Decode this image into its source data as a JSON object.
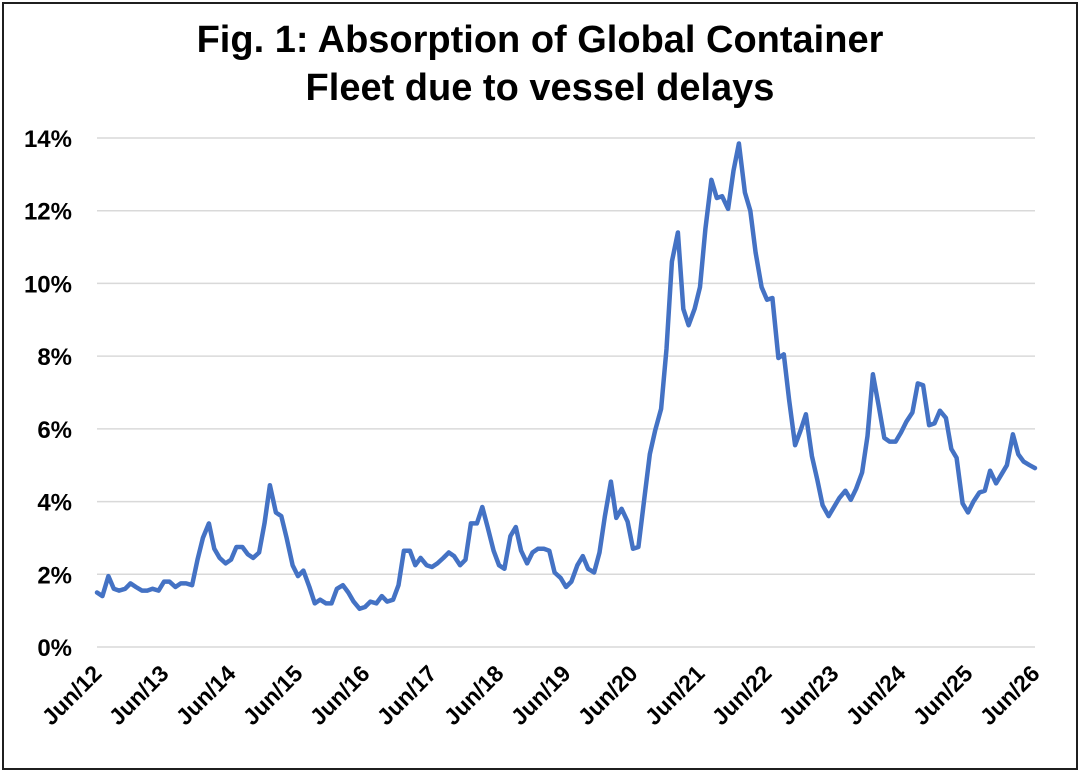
{
  "title_line1": "Fig. 1: Absorption of Global Container",
  "title_line2": "Fleet due to vessel delays",
  "colors": {
    "series": "#4472C4",
    "grid": "#d9d9d9",
    "frame": "#1f1f1f"
  },
  "chart_data": {
    "type": "line",
    "title": "Fig. 1: Absorption of Global Container Fleet due to vessel delays",
    "xlabel": "",
    "ylabel": "",
    "x_tick_labels": [
      "Jun/12",
      "Jun/13",
      "Jun/14",
      "Jun/15",
      "Jun/16",
      "Jun/17",
      "Jun/18",
      "Jun/19",
      "Jun/20",
      "Jun/21",
      "Jun/22",
      "Jun/23",
      "Jun/24",
      "Jun/25",
      "Jun/26"
    ],
    "y_tick_labels": [
      "0%",
      "2%",
      "4%",
      "6%",
      "8%",
      "10%",
      "12%",
      "14%"
    ],
    "ylim": [
      0,
      14
    ],
    "xlim": [
      2012.5,
      2026.5
    ],
    "grid": "horizontal",
    "legend": "none",
    "series": [
      {
        "points": [
          [
            2012.5,
            1.5
          ],
          [
            2012.58,
            1.4
          ],
          [
            2012.67,
            1.95
          ],
          [
            2012.75,
            1.6
          ],
          [
            2012.83,
            1.55
          ],
          [
            2012.92,
            1.6
          ],
          [
            2013.0,
            1.75
          ],
          [
            2013.08,
            1.65
          ],
          [
            2013.17,
            1.55
          ],
          [
            2013.25,
            1.55
          ],
          [
            2013.33,
            1.6
          ],
          [
            2013.42,
            1.55
          ],
          [
            2013.5,
            1.8
          ],
          [
            2013.58,
            1.8
          ],
          [
            2013.67,
            1.65
          ],
          [
            2013.75,
            1.75
          ],
          [
            2013.83,
            1.75
          ],
          [
            2013.92,
            1.7
          ],
          [
            2014.0,
            2.4
          ],
          [
            2014.08,
            3.0
          ],
          [
            2014.17,
            3.4
          ],
          [
            2014.25,
            2.7
          ],
          [
            2014.33,
            2.45
          ],
          [
            2014.42,
            2.3
          ],
          [
            2014.5,
            2.4
          ],
          [
            2014.58,
            2.75
          ],
          [
            2014.67,
            2.75
          ],
          [
            2014.75,
            2.55
          ],
          [
            2014.83,
            2.45
          ],
          [
            2014.92,
            2.6
          ],
          [
            2015.0,
            3.4
          ],
          [
            2015.08,
            4.45
          ],
          [
            2015.17,
            3.7
          ],
          [
            2015.25,
            3.6
          ],
          [
            2015.33,
            3.0
          ],
          [
            2015.42,
            2.25
          ],
          [
            2015.5,
            1.95
          ],
          [
            2015.58,
            2.1
          ],
          [
            2015.67,
            1.65
          ],
          [
            2015.75,
            1.2
          ],
          [
            2015.83,
            1.3
          ],
          [
            2015.92,
            1.2
          ],
          [
            2016.0,
            1.2
          ],
          [
            2016.08,
            1.6
          ],
          [
            2016.17,
            1.7
          ],
          [
            2016.25,
            1.5
          ],
          [
            2016.33,
            1.25
          ],
          [
            2016.42,
            1.05
          ],
          [
            2016.5,
            1.1
          ],
          [
            2016.58,
            1.25
          ],
          [
            2016.67,
            1.2
          ],
          [
            2016.75,
            1.4
          ],
          [
            2016.83,
            1.25
          ],
          [
            2016.92,
            1.3
          ],
          [
            2017.0,
            1.7
          ],
          [
            2017.08,
            2.65
          ],
          [
            2017.17,
            2.65
          ],
          [
            2017.25,
            2.25
          ],
          [
            2017.33,
            2.45
          ],
          [
            2017.42,
            2.25
          ],
          [
            2017.5,
            2.2
          ],
          [
            2017.58,
            2.3
          ],
          [
            2017.67,
            2.45
          ],
          [
            2017.75,
            2.6
          ],
          [
            2017.83,
            2.5
          ],
          [
            2017.92,
            2.25
          ],
          [
            2018.0,
            2.4
          ],
          [
            2018.08,
            3.4
          ],
          [
            2018.17,
            3.4
          ],
          [
            2018.25,
            3.85
          ],
          [
            2018.33,
            3.3
          ],
          [
            2018.42,
            2.65
          ],
          [
            2018.5,
            2.25
          ],
          [
            2018.58,
            2.15
          ],
          [
            2018.67,
            3.05
          ],
          [
            2018.75,
            3.3
          ],
          [
            2018.83,
            2.65
          ],
          [
            2018.92,
            2.3
          ],
          [
            2019.0,
            2.6
          ],
          [
            2019.08,
            2.7
          ],
          [
            2019.17,
            2.7
          ],
          [
            2019.25,
            2.65
          ],
          [
            2019.33,
            2.05
          ],
          [
            2019.42,
            1.9
          ],
          [
            2019.5,
            1.65
          ],
          [
            2019.58,
            1.8
          ],
          [
            2019.67,
            2.25
          ],
          [
            2019.75,
            2.5
          ],
          [
            2019.83,
            2.15
          ],
          [
            2019.92,
            2.05
          ],
          [
            2020.0,
            2.6
          ],
          [
            2020.08,
            3.6
          ],
          [
            2020.17,
            4.55
          ],
          [
            2020.25,
            3.55
          ],
          [
            2020.33,
            3.8
          ],
          [
            2020.42,
            3.45
          ],
          [
            2020.5,
            2.7
          ],
          [
            2020.58,
            2.75
          ],
          [
            2020.67,
            4.1
          ],
          [
            2020.75,
            5.3
          ],
          [
            2020.83,
            5.95
          ],
          [
            2020.92,
            6.55
          ],
          [
            2021.0,
            8.2
          ],
          [
            2021.08,
            10.6
          ],
          [
            2021.17,
            11.4
          ],
          [
            2021.25,
            9.3
          ],
          [
            2021.33,
            8.85
          ],
          [
            2021.42,
            9.3
          ],
          [
            2021.5,
            9.9
          ],
          [
            2021.58,
            11.5
          ],
          [
            2021.67,
            12.85
          ],
          [
            2021.75,
            12.35
          ],
          [
            2021.83,
            12.4
          ],
          [
            2021.92,
            12.05
          ],
          [
            2022.0,
            13.1
          ],
          [
            2022.08,
            13.85
          ],
          [
            2022.17,
            12.5
          ],
          [
            2022.25,
            12.0
          ],
          [
            2022.33,
            10.85
          ],
          [
            2022.42,
            9.9
          ],
          [
            2022.5,
            9.55
          ],
          [
            2022.58,
            9.6
          ],
          [
            2022.67,
            7.95
          ],
          [
            2022.75,
            8.05
          ],
          [
            2022.83,
            6.8
          ],
          [
            2022.92,
            5.55
          ],
          [
            2023.0,
            5.95
          ],
          [
            2023.08,
            6.4
          ],
          [
            2023.17,
            5.25
          ],
          [
            2023.25,
            4.6
          ],
          [
            2023.33,
            3.9
          ],
          [
            2023.42,
            3.6
          ],
          [
            2023.5,
            3.85
          ],
          [
            2023.58,
            4.1
          ],
          [
            2023.67,
            4.3
          ],
          [
            2023.75,
            4.05
          ],
          [
            2023.83,
            4.35
          ],
          [
            2023.92,
            4.8
          ],
          [
            2024.0,
            5.8
          ],
          [
            2024.08,
            7.5
          ],
          [
            2024.17,
            6.6
          ],
          [
            2024.25,
            5.75
          ],
          [
            2024.33,
            5.65
          ],
          [
            2024.42,
            5.65
          ],
          [
            2024.5,
            5.9
          ],
          [
            2024.58,
            6.2
          ],
          [
            2024.67,
            6.45
          ],
          [
            2024.75,
            7.25
          ],
          [
            2024.83,
            7.2
          ],
          [
            2024.92,
            6.1
          ],
          [
            2025.0,
            6.15
          ],
          [
            2025.08,
            6.5
          ],
          [
            2025.17,
            6.3
          ],
          [
            2025.25,
            5.45
          ],
          [
            2025.33,
            5.2
          ],
          [
            2025.42,
            3.95
          ],
          [
            2025.5,
            3.7
          ],
          [
            2025.58,
            4.0
          ],
          [
            2025.67,
            4.25
          ],
          [
            2025.75,
            4.3
          ],
          [
            2025.83,
            4.85
          ],
          [
            2025.92,
            4.5
          ],
          [
            2026.0,
            4.75
          ],
          [
            2026.08,
            5.0
          ],
          [
            2026.17,
            5.85
          ],
          [
            2026.25,
            5.3
          ],
          [
            2026.33,
            5.1
          ],
          [
            2026.42,
            5.0
          ],
          [
            2026.5,
            4.92
          ]
        ]
      }
    ]
  }
}
